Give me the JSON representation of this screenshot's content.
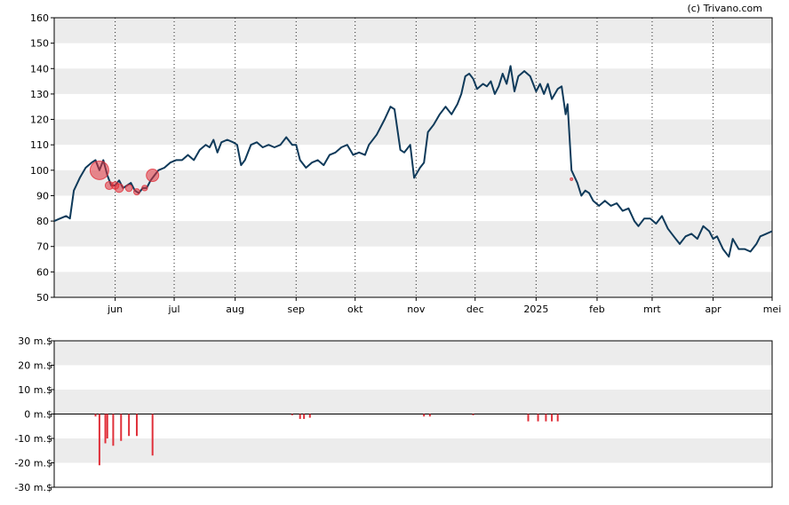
{
  "credit": "(c) Trivano.com",
  "chart_data": [
    {
      "type": "line",
      "ylim": [
        50,
        160
      ],
      "yticks": [
        "50",
        "60",
        "70",
        "80",
        "90",
        "100",
        "110",
        "120",
        "130",
        "140",
        "150",
        "160"
      ],
      "grid": "alternating horizontal bands, dotted vertical month lines",
      "x_range": [
        "2024-05-01",
        "2025-05-01"
      ],
      "xticks": [
        {
          "date": "2024-06-01",
          "label": "jun"
        },
        {
          "date": "2024-07-01",
          "label": "jul"
        },
        {
          "date": "2024-08-01",
          "label": "aug"
        },
        {
          "date": "2024-09-01",
          "label": "sep"
        },
        {
          "date": "2024-10-01",
          "label": "okt"
        },
        {
          "date": "2024-11-01",
          "label": "nov"
        },
        {
          "date": "2024-12-01",
          "label": "dec"
        },
        {
          "date": "2025-01-01",
          "label": "2025"
        },
        {
          "date": "2025-02-01",
          "label": "feb"
        },
        {
          "date": "2025-03-01",
          "label": "mrt"
        },
        {
          "date": "2025-04-01",
          "label": "apr"
        },
        {
          "date": "2025-05-01",
          "label": "mei"
        }
      ],
      "series": [
        {
          "color": "#0f3a5a",
          "points": [
            [
              "2024-05-01",
              80
            ],
            [
              "2024-05-04",
              81
            ],
            [
              "2024-05-07",
              82
            ],
            [
              "2024-05-09",
              81
            ],
            [
              "2024-05-11",
              92
            ],
            [
              "2024-05-14",
              97
            ],
            [
              "2024-05-17",
              101
            ],
            [
              "2024-05-20",
              103
            ],
            [
              "2024-05-22",
              104
            ],
            [
              "2024-05-24",
              100
            ],
            [
              "2024-05-26",
              104
            ],
            [
              "2024-05-28",
              98
            ],
            [
              "2024-05-30",
              94
            ],
            [
              "2024-06-01",
              94
            ],
            [
              "2024-06-03",
              96
            ],
            [
              "2024-06-05",
              93
            ],
            [
              "2024-06-07",
              94
            ],
            [
              "2024-06-09",
              95
            ],
            [
              "2024-06-11",
              92
            ],
            [
              "2024-06-13",
              91
            ],
            [
              "2024-06-15",
              93
            ],
            [
              "2024-06-17",
              93
            ],
            [
              "2024-06-19",
              96
            ],
            [
              "2024-06-21",
              98
            ],
            [
              "2024-06-23",
              100
            ],
            [
              "2024-06-26",
              101
            ],
            [
              "2024-06-29",
              103
            ],
            [
              "2024-07-02",
              104
            ],
            [
              "2024-07-05",
              104
            ],
            [
              "2024-07-08",
              106
            ],
            [
              "2024-07-11",
              104
            ],
            [
              "2024-07-14",
              108
            ],
            [
              "2024-07-17",
              110
            ],
            [
              "2024-07-19",
              109
            ],
            [
              "2024-07-21",
              112
            ],
            [
              "2024-07-23",
              107
            ],
            [
              "2024-07-25",
              111
            ],
            [
              "2024-07-28",
              112
            ],
            [
              "2024-07-31",
              111
            ],
            [
              "2024-08-02",
              110
            ],
            [
              "2024-08-04",
              102
            ],
            [
              "2024-08-06",
              104
            ],
            [
              "2024-08-09",
              110
            ],
            [
              "2024-08-12",
              111
            ],
            [
              "2024-08-15",
              109
            ],
            [
              "2024-08-18",
              110
            ],
            [
              "2024-08-21",
              109
            ],
            [
              "2024-08-24",
              110
            ],
            [
              "2024-08-27",
              113
            ],
            [
              "2024-08-30",
              110
            ],
            [
              "2024-09-01",
              110
            ],
            [
              "2024-09-03",
              104
            ],
            [
              "2024-09-06",
              101
            ],
            [
              "2024-09-09",
              103
            ],
            [
              "2024-09-12",
              104
            ],
            [
              "2024-09-15",
              102
            ],
            [
              "2024-09-18",
              106
            ],
            [
              "2024-09-21",
              107
            ],
            [
              "2024-09-24",
              109
            ],
            [
              "2024-09-27",
              110
            ],
            [
              "2024-09-30",
              106
            ],
            [
              "2024-10-03",
              107
            ],
            [
              "2024-10-06",
              106
            ],
            [
              "2024-10-08",
              110
            ],
            [
              "2024-10-12",
              114
            ],
            [
              "2024-10-16",
              120
            ],
            [
              "2024-10-19",
              125
            ],
            [
              "2024-10-21",
              124
            ],
            [
              "2024-10-24",
              108
            ],
            [
              "2024-10-26",
              107
            ],
            [
              "2024-10-29",
              110
            ],
            [
              "2024-10-31",
              97
            ],
            [
              "2024-11-03",
              101
            ],
            [
              "2024-11-05",
              103
            ],
            [
              "2024-11-07",
              115
            ],
            [
              "2024-11-10",
              118
            ],
            [
              "2024-11-13",
              122
            ],
            [
              "2024-11-16",
              125
            ],
            [
              "2024-11-19",
              122
            ],
            [
              "2024-11-22",
              126
            ],
            [
              "2024-11-24",
              130
            ],
            [
              "2024-11-26",
              137
            ],
            [
              "2024-11-28",
              138
            ],
            [
              "2024-11-30",
              136
            ],
            [
              "2024-12-02",
              132
            ],
            [
              "2024-12-05",
              134
            ],
            [
              "2024-12-07",
              133
            ],
            [
              "2024-12-09",
              135
            ],
            [
              "2024-12-11",
              130
            ],
            [
              "2024-12-13",
              133
            ],
            [
              "2024-12-15",
              138
            ],
            [
              "2024-12-17",
              134
            ],
            [
              "2024-12-19",
              141
            ],
            [
              "2024-12-21",
              131
            ],
            [
              "2024-12-23",
              137
            ],
            [
              "2024-12-26",
              139
            ],
            [
              "2024-12-29",
              137
            ],
            [
              "2025-01-01",
              131
            ],
            [
              "2025-01-03",
              134
            ],
            [
              "2025-01-05",
              130
            ],
            [
              "2025-01-07",
              134
            ],
            [
              "2025-01-09",
              128
            ],
            [
              "2025-01-12",
              132
            ],
            [
              "2025-01-14",
              133
            ],
            [
              "2025-01-16",
              122
            ],
            [
              "2025-01-17",
              126
            ],
            [
              "2025-01-19",
              100
            ],
            [
              "2025-01-22",
              95
            ],
            [
              "2025-01-24",
              90
            ],
            [
              "2025-01-26",
              92
            ],
            [
              "2025-01-28",
              91
            ],
            [
              "2025-01-30",
              88
            ],
            [
              "2025-02-02",
              86
            ],
            [
              "2025-02-05",
              88
            ],
            [
              "2025-02-08",
              86
            ],
            [
              "2025-02-11",
              87
            ],
            [
              "2025-02-14",
              84
            ],
            [
              "2025-02-17",
              85
            ],
            [
              "2025-02-20",
              80
            ],
            [
              "2025-02-22",
              78
            ],
            [
              "2025-02-25",
              81
            ],
            [
              "2025-02-28",
              81
            ],
            [
              "2025-03-03",
              79
            ],
            [
              "2025-03-06",
              82
            ],
            [
              "2025-03-09",
              77
            ],
            [
              "2025-03-12",
              74
            ],
            [
              "2025-03-15",
              71
            ],
            [
              "2025-03-18",
              74
            ],
            [
              "2025-03-21",
              75
            ],
            [
              "2025-03-24",
              73
            ],
            [
              "2025-03-27",
              78
            ],
            [
              "2025-03-30",
              76
            ],
            [
              "2025-04-01",
              73
            ],
            [
              "2025-04-03",
              74
            ],
            [
              "2025-04-06",
              69
            ],
            [
              "2025-04-09",
              66
            ],
            [
              "2025-04-11",
              73
            ],
            [
              "2025-04-14",
              69
            ],
            [
              "2025-04-17",
              69
            ],
            [
              "2025-04-20",
              68
            ],
            [
              "2025-04-23",
              71
            ],
            [
              "2025-04-25",
              74
            ],
            [
              "2025-04-28",
              75
            ],
            [
              "2025-05-01",
              76
            ]
          ]
        }
      ],
      "markers": {
        "color": "#e0303a",
        "points": [
          {
            "date": "2024-05-24",
            "value": 100,
            "size": 3
          },
          {
            "date": "2024-05-29",
            "value": 94,
            "size": 1.3
          },
          {
            "date": "2024-06-01",
            "value": 94,
            "size": 1.2
          },
          {
            "date": "2024-06-03",
            "value": 93,
            "size": 1.4
          },
          {
            "date": "2024-06-08",
            "value": 93,
            "size": 1.1
          },
          {
            "date": "2024-06-12",
            "value": 91.5,
            "size": 1.0
          },
          {
            "date": "2024-06-16",
            "value": 93,
            "size": 0.9
          },
          {
            "date": "2024-06-20",
            "value": 98,
            "size": 2.0
          },
          {
            "date": "2025-01-19",
            "value": 96.5,
            "size": 0.2
          }
        ]
      }
    },
    {
      "type": "bar",
      "ylim": [
        -30,
        30
      ],
      "yticks": [
        "-30 m.$",
        "-20 m.$",
        "-10 m.$",
        "0 m.$",
        "10 m.$",
        "20 m.$",
        "30 m.$"
      ],
      "x_range": [
        "2024-05-01",
        "2025-05-01"
      ],
      "color": "#e0303a",
      "bars": [
        [
          "2024-05-22",
          -1
        ],
        [
          "2024-05-24",
          -21
        ],
        [
          "2024-05-27",
          -12
        ],
        [
          "2024-05-28",
          -10
        ],
        [
          "2024-05-31",
          -13
        ],
        [
          "2024-06-04",
          -11
        ],
        [
          "2024-06-08",
          -9
        ],
        [
          "2024-06-12",
          -9
        ],
        [
          "2024-06-20",
          -17
        ],
        [
          "2024-08-30",
          -0.5
        ],
        [
          "2024-09-03",
          -2
        ],
        [
          "2024-09-05",
          -2
        ],
        [
          "2024-09-08",
          -1.5
        ],
        [
          "2024-11-05",
          -1
        ],
        [
          "2024-11-08",
          -1
        ],
        [
          "2024-11-30",
          -0.5
        ],
        [
          "2024-12-28",
          -3
        ],
        [
          "2025-01-02",
          -3
        ],
        [
          "2025-01-06",
          -3
        ],
        [
          "2025-01-09",
          -3
        ],
        [
          "2025-01-12",
          -3
        ]
      ]
    }
  ]
}
